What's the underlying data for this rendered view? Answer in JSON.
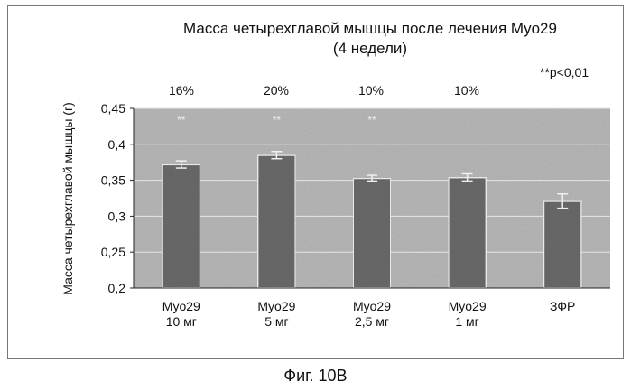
{
  "figure": {
    "caption": "Фиг. 10В"
  },
  "chart_data": {
    "type": "bar",
    "title_line1": "Масса четырехглавой мышцы после лечения Myo29",
    "title_line2": "(4 недели)",
    "ylabel": "Масса четырехглавой мышцы (г)",
    "xlabel": "",
    "ylim": [
      0.2,
      0.45
    ],
    "yticks": [
      "0,2",
      "0,25",
      "0,3",
      "0,35",
      "0,4",
      "0,45"
    ],
    "ytick_values": [
      0.2,
      0.25,
      0.3,
      0.35,
      0.4,
      0.45
    ],
    "categories": [
      [
        "Myo29",
        "10 мг"
      ],
      [
        "Myo29",
        "5 мг"
      ],
      [
        "Myo29",
        "2,5 мг"
      ],
      [
        "Myo29",
        "1 мг"
      ],
      [
        "ЗФР"
      ]
    ],
    "values": [
      0.372,
      0.385,
      0.353,
      0.354,
      0.321
    ],
    "errors": [
      0.005,
      0.005,
      0.004,
      0.005,
      0.01
    ],
    "percent_labels": [
      "16%",
      "20%",
      "10%",
      "10%",
      ""
    ],
    "significance_marks": [
      "**",
      "**",
      "**",
      "",
      ""
    ],
    "significance_note": "**p<0,01",
    "grid": true,
    "colors": {
      "plot_background": "#b8b8b8",
      "bar_fill": "#6a6a6a",
      "bar_edge": "#f2f2f2",
      "gridline": "#e6e6e6",
      "axis": "#222222"
    }
  }
}
